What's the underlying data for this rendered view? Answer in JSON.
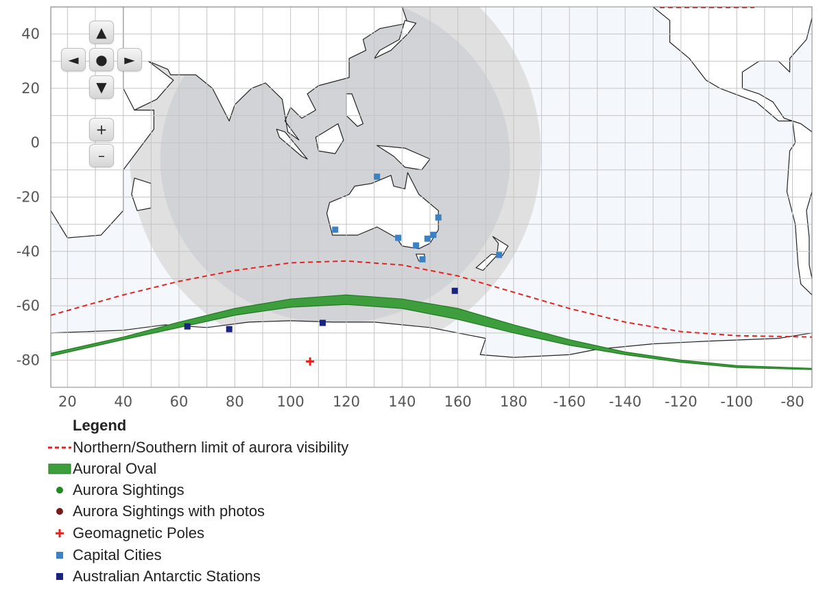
{
  "map": {
    "lat_range": [
      -90,
      50
    ],
    "lon_start": 14,
    "lon_span": 273,
    "lat_ticks": [
      40,
      20,
      0,
      -20,
      -40,
      -60,
      -80
    ],
    "lon_ticks": [
      {
        "lon": 20,
        "label": "20"
      },
      {
        "lon": 40,
        "label": "40"
      },
      {
        "lon": 60,
        "label": "60"
      },
      {
        "lon": 80,
        "label": "80"
      },
      {
        "lon": 100,
        "label": "100"
      },
      {
        "lon": 120,
        "label": "120"
      },
      {
        "lon": 140,
        "label": "140"
      },
      {
        "lon": 160,
        "label": "160"
      },
      {
        "lon": 180,
        "label": "180"
      },
      {
        "lon": 200,
        "label": "-160"
      },
      {
        "lon": 220,
        "label": "-140"
      },
      {
        "lon": 240,
        "label": "-120"
      },
      {
        "lon": 260,
        "label": "-100"
      },
      {
        "lon": 280,
        "label": "-80"
      }
    ],
    "colors": {
      "ocean": "#f4f8fd",
      "land": "#ffffff",
      "outline": "#222222",
      "grid": "#c4c4c4",
      "night_outer": "#dedede",
      "night_inner": "#d0d2d5",
      "oval": "#3e9e3e",
      "oval_edge": "#1f7a1f",
      "limit": "#e8201c",
      "capital": "#3b82c4",
      "station": "#1a237e",
      "pole": "#e8201c"
    },
    "visibility_limit": [
      [
        14,
        -63.5
      ],
      [
        40,
        -56
      ],
      [
        60,
        -51
      ],
      [
        80,
        -47
      ],
      [
        100,
        -44.2
      ],
      [
        120,
        -43.5
      ],
      [
        140,
        -45
      ],
      [
        160,
        -49
      ],
      [
        180,
        -55
      ],
      [
        200,
        -61
      ],
      [
        220,
        -66
      ],
      [
        240,
        -69.5
      ],
      [
        260,
        -71
      ],
      [
        287,
        -71.5
      ]
    ],
    "oval_north": [
      [
        14,
        -77.5
      ],
      [
        40,
        -71.5
      ],
      [
        60,
        -66
      ],
      [
        80,
        -61
      ],
      [
        100,
        -57.5
      ],
      [
        120,
        -56
      ],
      [
        140,
        -57.5
      ],
      [
        160,
        -61
      ],
      [
        180,
        -67
      ],
      [
        200,
        -72.5
      ],
      [
        220,
        -77
      ],
      [
        240,
        -80
      ],
      [
        260,
        -82
      ],
      [
        287,
        -83
      ]
    ],
    "oval_south": [
      [
        287,
        -83.5
      ],
      [
        260,
        -82.7
      ],
      [
        240,
        -80.8
      ],
      [
        220,
        -78
      ],
      [
        200,
        -74.5
      ],
      [
        180,
        -70
      ],
      [
        160,
        -65
      ],
      [
        140,
        -61
      ],
      [
        120,
        -59.5
      ],
      [
        100,
        -60.5
      ],
      [
        80,
        -63.5
      ],
      [
        60,
        -68
      ],
      [
        40,
        -72.5
      ],
      [
        14,
        -78.5
      ]
    ],
    "capitals": [
      [
        131,
        -12.5
      ],
      [
        116,
        -32
      ],
      [
        138.6,
        -35
      ],
      [
        145,
        -37.8
      ],
      [
        147.3,
        -42.9
      ],
      [
        149.1,
        -35.3
      ],
      [
        151.2,
        -33.9
      ],
      [
        153,
        -27.5
      ],
      [
        174.8,
        -41.3
      ]
    ],
    "stations": [
      [
        63,
        -67.6
      ],
      [
        78,
        -68.6
      ],
      [
        111.5,
        -66.3
      ],
      [
        158.9,
        -54.5
      ]
    ],
    "poles": [
      [
        107,
        -80.5
      ]
    ]
  },
  "nav": {
    "up": "▲",
    "left": "◄",
    "center": "●",
    "right": "►",
    "down": "▼",
    "zoom_in": "+",
    "zoom_out": "–"
  },
  "legend": {
    "title": "Legend",
    "items": [
      {
        "label": "Northern/Southern limit of aurora visibility",
        "symbol": "dashed-line"
      },
      {
        "label": "Auroral Oval",
        "symbol": "band"
      },
      {
        "label": "Aurora Sightings",
        "symbol": "dot-green"
      },
      {
        "label": "Aurora Sightings with photos",
        "symbol": "dot-darkred"
      },
      {
        "label": "Geomagnetic Poles",
        "symbol": "cross-red"
      },
      {
        "label": "Capital Cities",
        "symbol": "square-blue"
      },
      {
        "label": "Australian Antarctic Stations",
        "symbol": "square-navy"
      }
    ]
  }
}
